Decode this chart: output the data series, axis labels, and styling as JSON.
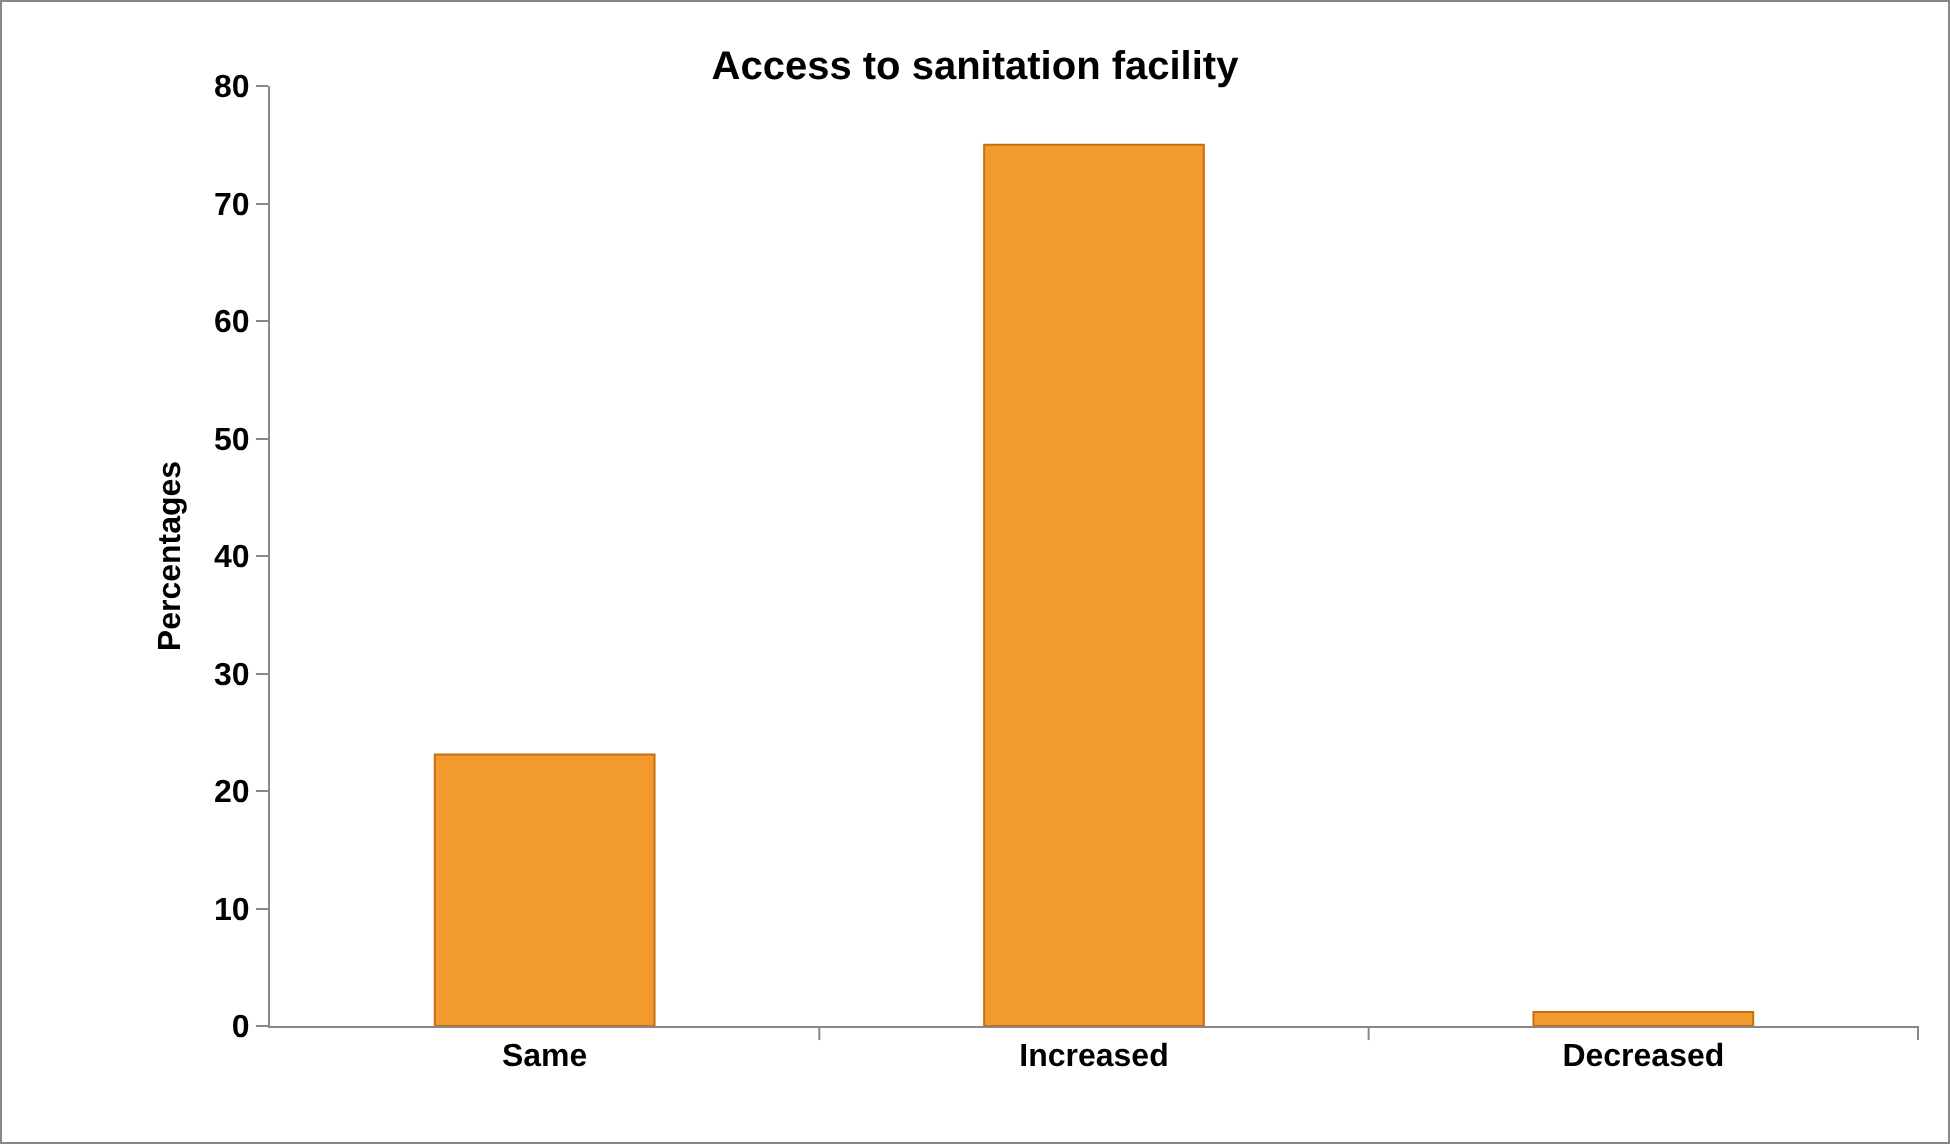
{
  "chart_data": {
    "type": "bar",
    "title": "Access to sanitation facility",
    "ylabel": "Percentages",
    "categories": [
      "Same",
      "Increased",
      "Decreased"
    ],
    "values": [
      23.1,
      75,
      1.2
    ],
    "color": "#f39a2e",
    "ylim": [
      0,
      80
    ],
    "yticks": [
      0,
      10,
      20,
      30,
      40,
      50,
      60,
      70,
      80
    ],
    "grid": false,
    "legend": false
  }
}
